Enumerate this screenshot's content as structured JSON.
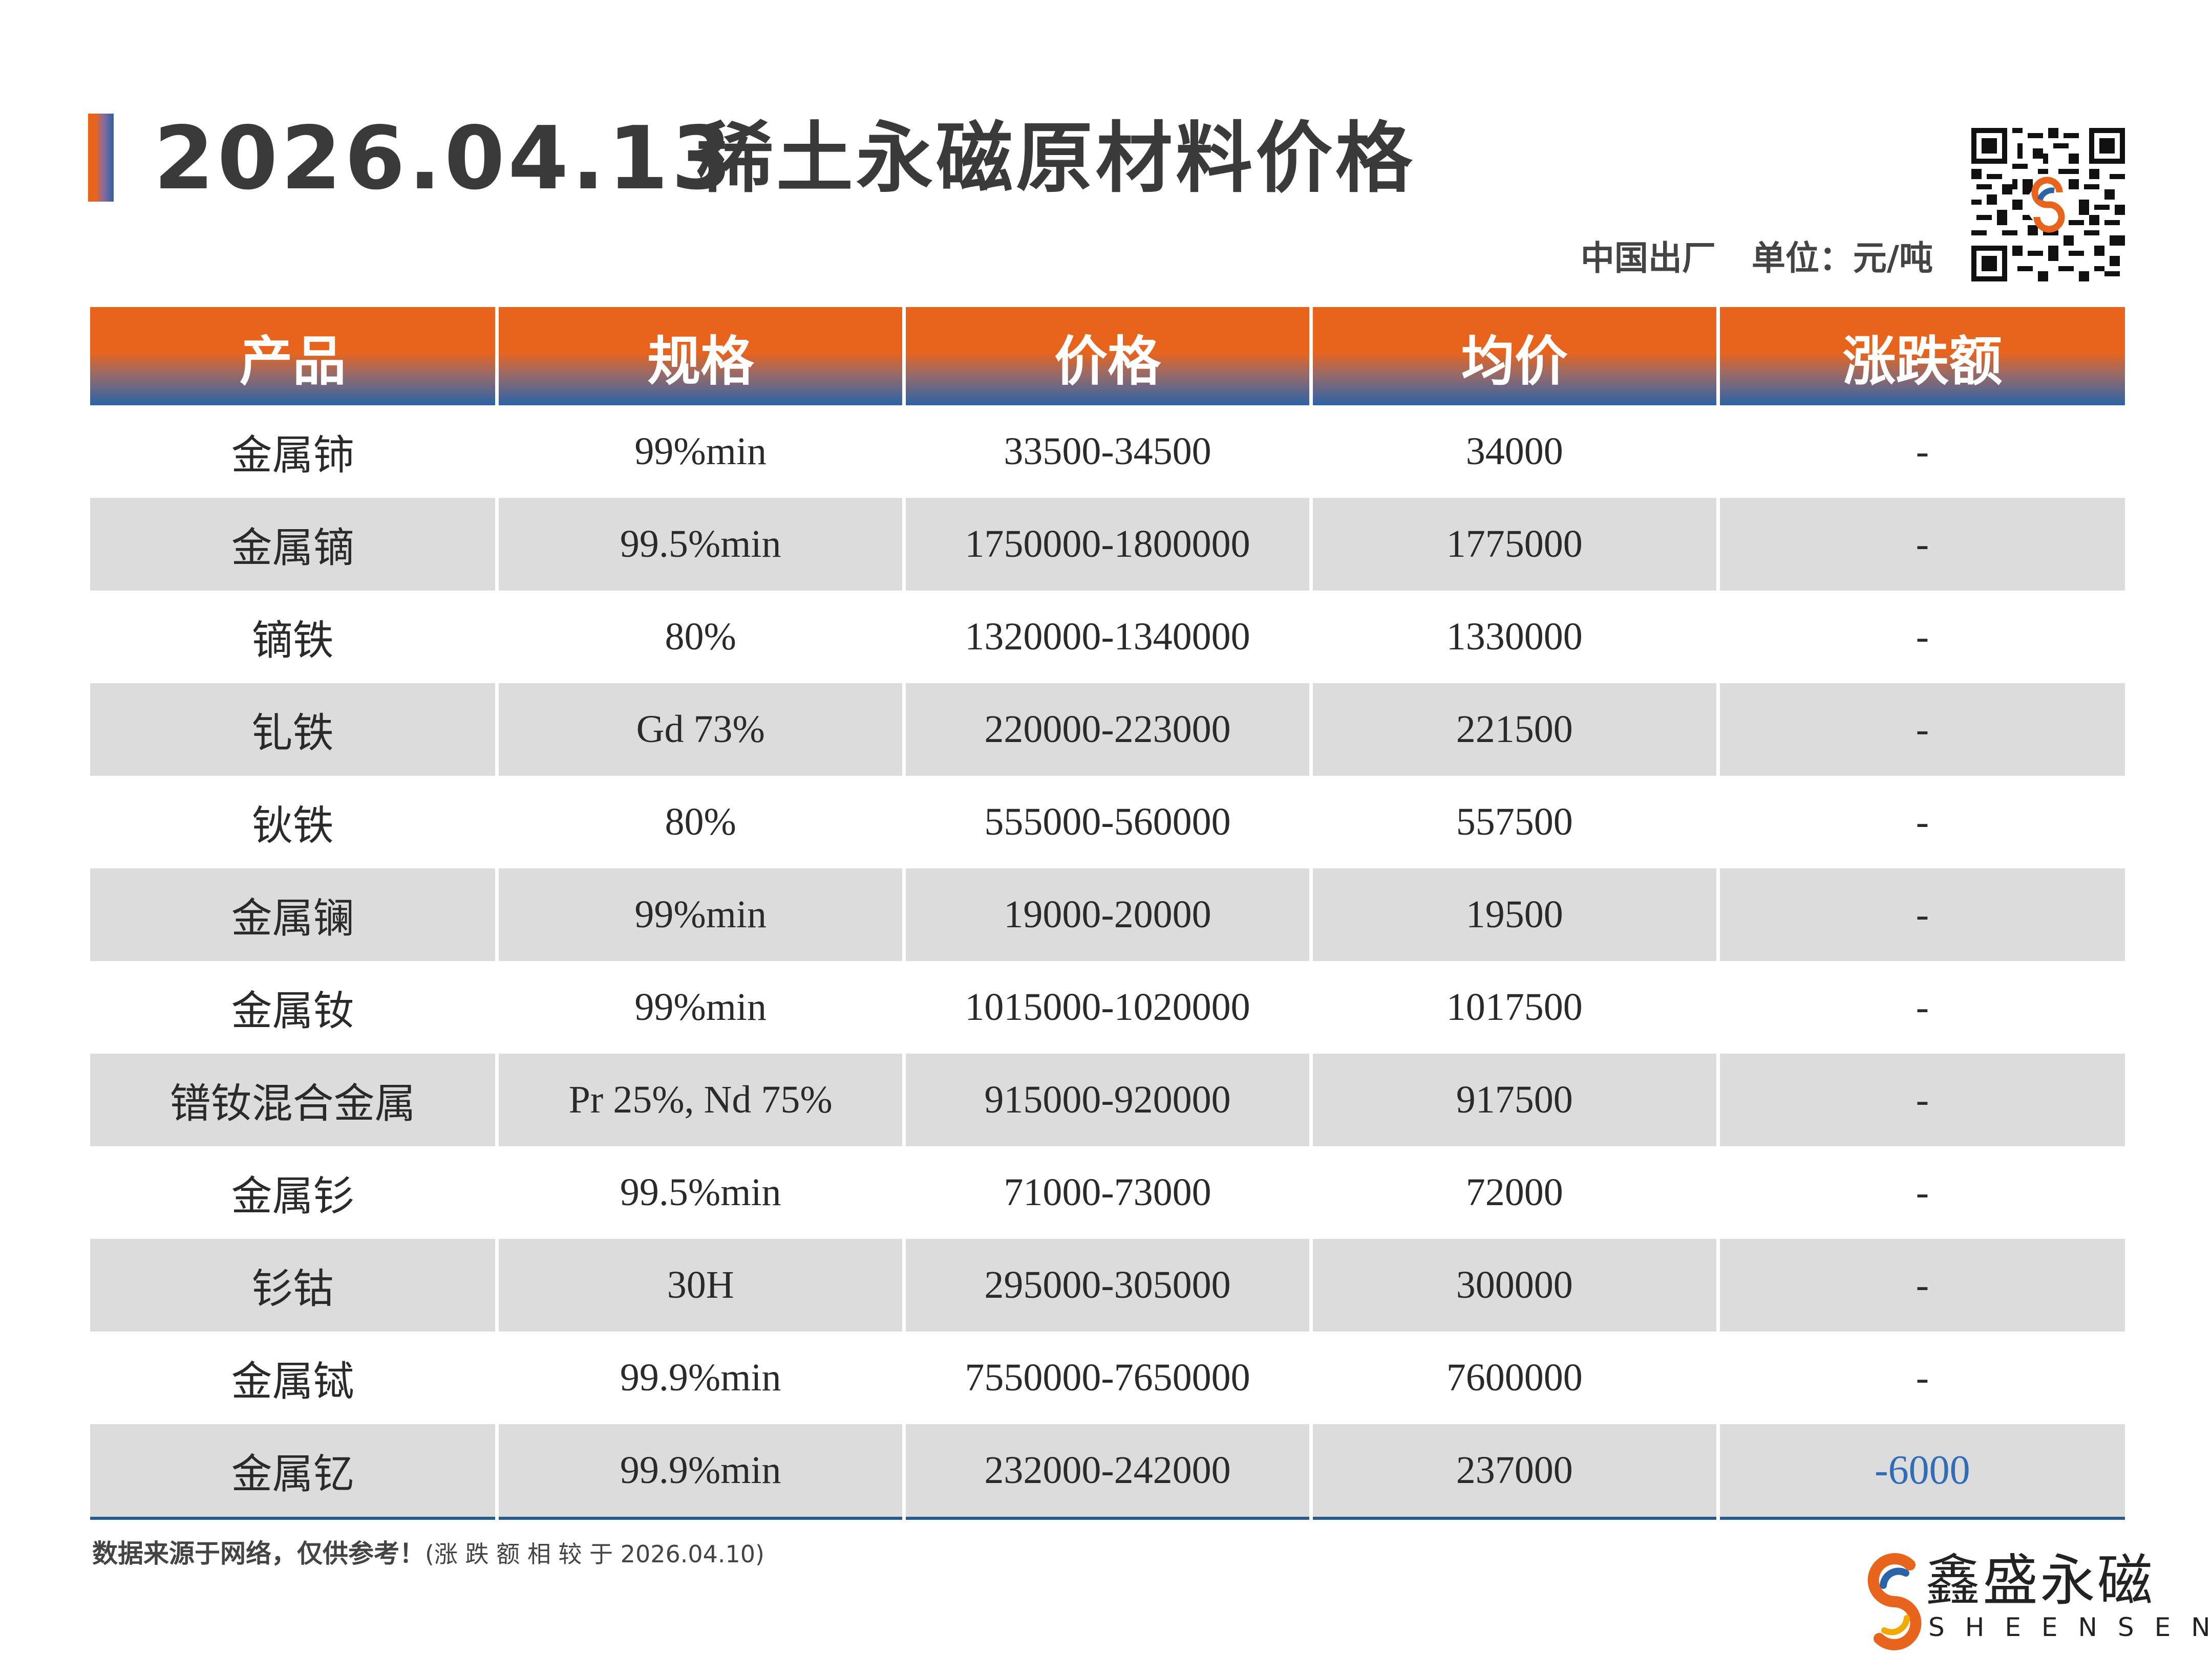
{
  "header": {
    "date": "2026.04.13",
    "title": "稀土永磁原材料价格",
    "origin": "中国出厂",
    "unit": "单位：元/吨"
  },
  "table": {
    "headers": [
      "产品",
      "规格",
      "价格",
      "均价",
      "涨跌额"
    ],
    "rows": [
      {
        "product": "金属铈",
        "spec": "99%min",
        "price": "33500-34500",
        "avg": "34000",
        "change": "-"
      },
      {
        "product": "金属镝",
        "spec": "99.5%min",
        "price": "1750000-1800000",
        "avg": "1775000",
        "change": "-"
      },
      {
        "product": "镝铁",
        "spec": "80%",
        "price": "1320000-1340000",
        "avg": "1330000",
        "change": "-"
      },
      {
        "product": "钆铁",
        "spec": "Gd 73%",
        "price": "220000-223000",
        "avg": "221500",
        "change": "-"
      },
      {
        "product": "钬铁",
        "spec": "80%",
        "price": "555000-560000",
        "avg": "557500",
        "change": "-"
      },
      {
        "product": "金属镧",
        "spec": "99%min",
        "price": "19000-20000",
        "avg": "19500",
        "change": "-"
      },
      {
        "product": "金属钕",
        "spec": "99%min",
        "price": "1015000-1020000",
        "avg": "1017500",
        "change": "-"
      },
      {
        "product": "镨钕混合金属",
        "spec": "Pr 25%, Nd 75%",
        "price": "915000-920000",
        "avg": "917500",
        "change": "-"
      },
      {
        "product": "金属钐",
        "spec": "99.5%min",
        "price": "71000-73000",
        "avg": "72000",
        "change": "-"
      },
      {
        "product": "钐钴",
        "spec": "30H",
        "price": "295000-305000",
        "avg": "300000",
        "change": "-"
      },
      {
        "product": "金属铽",
        "spec": "99.9%min",
        "price": "7550000-7650000",
        "avg": "7600000",
        "change": "-"
      },
      {
        "product": "金属钇",
        "spec": "99.9%min",
        "price": "232000-242000",
        "avg": "237000",
        "change": "-6000"
      }
    ]
  },
  "footer": {
    "note": "数据来源于网络，仅供参考！",
    "note_paren": "(涨 跌 额 相 较 于 2026.04.10)"
  },
  "brand": {
    "name": "鑫盛永磁",
    "name_en": "SHEENSEN"
  },
  "colors": {
    "accent_orange": "#e8641c",
    "accent_blue": "#2b63a8",
    "change_negative": "#2f6db8",
    "row_alt": "#dcdcdc"
  }
}
